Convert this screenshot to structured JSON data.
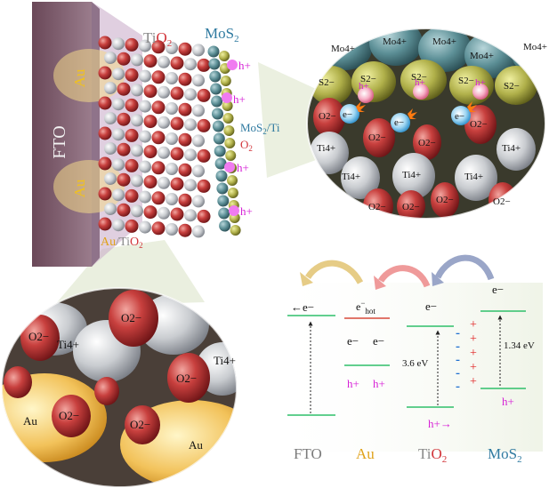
{
  "schematic": {
    "fto_label": "FTO",
    "tio2_label": {
      "base": "Ti",
      "o": "O",
      "sub": "2"
    },
    "mos2_label": {
      "base": "MoS",
      "sub": "2"
    },
    "au_labels": [
      "Au",
      "Au"
    ],
    "au_tio2_label": {
      "au": "Au",
      "slash": "/",
      "ti": "Ti",
      "o": "O",
      "sub": "2"
    },
    "mos2_ti_label": {
      "base": "MoS",
      "sub": "2",
      "rest": "/Ti"
    },
    "o2_label": {
      "base": "O",
      "sub": "2"
    },
    "hole_labels": [
      "h+",
      "h+",
      "h+",
      "h+"
    ]
  },
  "zoom_top_right": {
    "mo_labels": [
      "Mo4+",
      "Mo4+",
      "Mo4+",
      "Mo4+",
      "Mo4+"
    ],
    "s_labels": [
      "S2−",
      "S2−",
      "S2−",
      "S2−",
      "S2−"
    ],
    "o_labels": [
      "O2−",
      "O2−",
      "O2−",
      "O2−",
      "O2−",
      "O2−",
      "O2−",
      "O2−"
    ],
    "ti_labels": [
      "Ti4+",
      "Ti4+",
      "Ti4+",
      "Ti4+",
      "Ti4+"
    ],
    "electron_labels": [
      "e−",
      "e−",
      "e−"
    ],
    "hole_labels": [
      "h+",
      "h+",
      "h+"
    ]
  },
  "zoom_bottom_left": {
    "o_labels": [
      "O2−",
      "O2−",
      "O2−",
      "O2−",
      "O2−"
    ],
    "ti_labels": [
      "Ti4+",
      "Ti4+"
    ],
    "au_labels": [
      "Au",
      "Au"
    ]
  },
  "energy_diagram": {
    "fto_electron": "←e−",
    "au_hot_electron": {
      "e": "e",
      "sup": "−",
      "sub": "hot"
    },
    "au_electrons": [
      "e−",
      "e−"
    ],
    "au_holes": [
      "h+",
      "h+"
    ],
    "tio2_electron": "e−",
    "tio2_gap": "3.6 eV",
    "tio2_hole": "h+→",
    "mos2_electron": "e−",
    "mos2_gap": "1.34 eV",
    "mos2_hole": "h+",
    "minus_signs": [
      "-",
      "-",
      "-",
      "-",
      "-"
    ],
    "plus_signs": [
      "+",
      "+",
      "+",
      "+",
      "+"
    ],
    "column_labels": {
      "fto": "FTO",
      "au": "Au",
      "tio2": {
        "base": "Ti",
        "o": "O",
        "sub": "2"
      },
      "mos2": {
        "base": "MoS",
        "sub": "2"
      }
    },
    "colors": {
      "fto": "#7a7a7a",
      "au": "#e0a21a",
      "tio2_ti": "#8a8a8a",
      "tio2_o": "#d2353a",
      "mos2": "#2f7aa0",
      "hole": "#d61fd6",
      "band_line": "#2fbf6a",
      "hot_line": "#d84a3a"
    }
  }
}
